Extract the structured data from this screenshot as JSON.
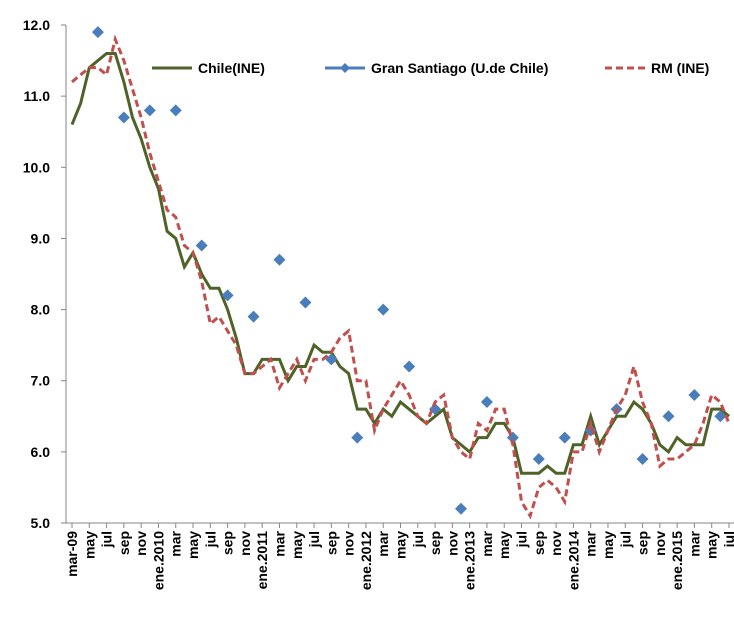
{
  "chart_data": {
    "type": "line",
    "categories": [
      "mar-09",
      null,
      "may",
      null,
      "jul",
      null,
      "sep",
      null,
      "nov",
      null,
      "ene.2010",
      null,
      "mar",
      null,
      "may",
      null,
      "jul",
      null,
      "sep",
      null,
      "nov",
      null,
      "ene.2011",
      null,
      "mar",
      null,
      "may",
      null,
      "jul",
      null,
      "sep",
      null,
      "nov",
      null,
      "ene.2012",
      null,
      "mar",
      null,
      "may",
      null,
      "jul",
      null,
      "sep",
      null,
      "nov",
      null,
      "ene.2013",
      null,
      "mar",
      null,
      "may",
      null,
      "jul",
      null,
      "sep",
      null,
      "nov",
      null,
      "ene.2014",
      null,
      "mar",
      null,
      "may",
      null,
      "jul",
      null,
      "sep",
      null,
      "nov",
      null,
      "ene.2015",
      null,
      "mar",
      null,
      "may",
      null,
      "jul"
    ],
    "series": [
      {
        "name": "Chile(INE)",
        "color": "#4f6228",
        "style": "solid",
        "values": [
          10.6,
          10.9,
          11.4,
          11.5,
          11.6,
          11.6,
          11.2,
          10.7,
          10.4,
          10.0,
          9.7,
          9.1,
          9.0,
          8.6,
          8.8,
          8.5,
          8.3,
          8.3,
          8.0,
          7.6,
          7.1,
          7.1,
          7.3,
          7.3,
          7.3,
          7.0,
          7.2,
          7.2,
          7.5,
          7.4,
          7.4,
          7.2,
          7.1,
          6.6,
          6.6,
          6.4,
          6.6,
          6.5,
          6.7,
          6.6,
          6.5,
          6.4,
          6.5,
          6.6,
          6.2,
          6.1,
          6.0,
          6.2,
          6.2,
          6.4,
          6.4,
          6.2,
          5.7,
          5.7,
          5.7,
          5.8,
          5.7,
          5.7,
          6.1,
          6.1,
          6.5,
          6.1,
          6.3,
          6.5,
          6.5,
          6.7,
          6.6,
          6.4,
          6.1,
          6.0,
          6.2,
          6.1,
          6.1,
          6.1,
          6.6,
          6.6,
          6.5
        ]
      },
      {
        "name": "Gran  Santiago (U.de Chile)",
        "color": "#4a7ebb",
        "style": "markers",
        "values": [
          null,
          null,
          null,
          11.9,
          null,
          null,
          10.7,
          null,
          null,
          10.8,
          null,
          null,
          10.8,
          null,
          null,
          8.9,
          null,
          null,
          8.2,
          null,
          null,
          7.9,
          null,
          null,
          8.7,
          null,
          null,
          8.1,
          null,
          null,
          7.3,
          null,
          null,
          6.2,
          null,
          null,
          8.0,
          null,
          null,
          7.2,
          null,
          null,
          6.6,
          null,
          null,
          5.2,
          null,
          null,
          6.7,
          null,
          null,
          6.2,
          null,
          null,
          5.9,
          null,
          null,
          6.2,
          null,
          null,
          6.3,
          null,
          null,
          6.6,
          null,
          null,
          5.9,
          null,
          null,
          6.5,
          null,
          null,
          6.8,
          null,
          null,
          6.5,
          null
        ]
      },
      {
        "name": "RM (INE)",
        "color": "#c0504d",
        "style": "dashed",
        "values": [
          11.2,
          11.3,
          11.4,
          11.4,
          11.3,
          11.8,
          11.5,
          11.1,
          10.7,
          10.2,
          9.8,
          9.4,
          9.3,
          8.9,
          8.8,
          8.4,
          7.8,
          7.9,
          7.7,
          7.5,
          7.1,
          7.1,
          7.2,
          7.3,
          6.9,
          7.1,
          7.3,
          7.0,
          7.3,
          7.3,
          7.4,
          7.6,
          7.7,
          7.0,
          7.0,
          6.3,
          6.6,
          6.8,
          7.0,
          6.8,
          6.5,
          6.4,
          6.7,
          6.8,
          6.2,
          6.0,
          5.9,
          6.4,
          6.3,
          6.6,
          6.6,
          6.1,
          5.3,
          5.1,
          5.5,
          5.6,
          5.5,
          5.3,
          6.0,
          6.0,
          6.4,
          6.0,
          6.3,
          6.6,
          6.8,
          7.2,
          6.7,
          6.4,
          5.8,
          5.9,
          5.9,
          6.0,
          6.1,
          6.4,
          6.8,
          6.7,
          6.4
        ]
      }
    ],
    "ylim": [
      5,
      12
    ],
    "yticks": [
      {
        "value": 5,
        "label": "5.0"
      },
      {
        "value": 6,
        "label": "6.0"
      },
      {
        "value": 7,
        "label": "7.0"
      },
      {
        "value": 8,
        "label": "8.0"
      },
      {
        "value": 9,
        "label": "9.0"
      },
      {
        "value": 10,
        "label": "10.0"
      },
      {
        "value": 11,
        "label": "11.0"
      },
      {
        "value": 12,
        "label": "12.0"
      }
    ],
    "grid": false,
    "legend": "top"
  }
}
